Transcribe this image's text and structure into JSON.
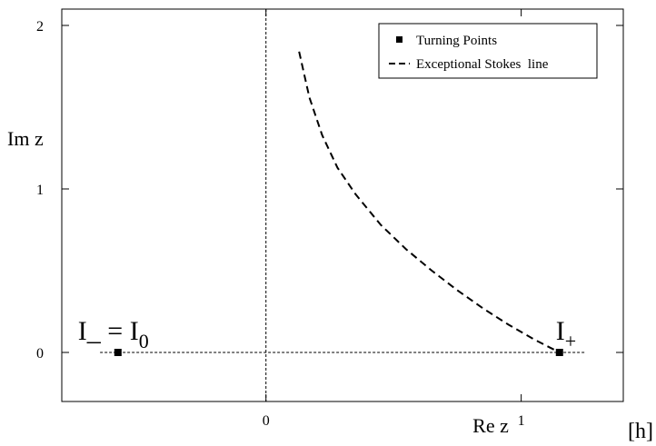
{
  "chart_data": {
    "type": "scatter",
    "xlabel": "Re z",
    "ylabel": "Im z",
    "xlim": [
      -0.8,
      1.4
    ],
    "ylim": [
      -0.3,
      2.1
    ],
    "x_ticks": [
      0,
      1
    ],
    "y_ticks": [
      0,
      1,
      2
    ],
    "x_unit_label": "[h]",
    "grid": false,
    "legend_position": "top-right",
    "reference_lines": [
      {
        "orientation": "horizontal",
        "y": 0,
        "x_from": -0.65,
        "x_to": 1.25,
        "style": "dotted"
      },
      {
        "orientation": "vertical",
        "x": 0,
        "style": "dotted"
      }
    ],
    "series": [
      {
        "name": "Turning Points",
        "kind": "markers",
        "marker": "square",
        "points": [
          {
            "x": -0.58,
            "y": 0,
            "label": "I_ = I",
            "label_sub": "0"
          },
          {
            "x": 1.15,
            "y": 0,
            "label": "I",
            "label_sub": "+"
          }
        ]
      },
      {
        "name": "Exceptional Stokes  line",
        "kind": "line",
        "style": "dashed",
        "x": [
          0.13,
          0.17,
          0.22,
          0.28,
          0.35,
          0.45,
          0.55,
          0.65,
          0.75,
          0.85,
          0.95,
          1.05,
          1.15
        ],
        "y": [
          1.84,
          1.56,
          1.33,
          1.13,
          0.97,
          0.78,
          0.63,
          0.5,
          0.38,
          0.27,
          0.17,
          0.08,
          0.0
        ]
      }
    ]
  }
}
